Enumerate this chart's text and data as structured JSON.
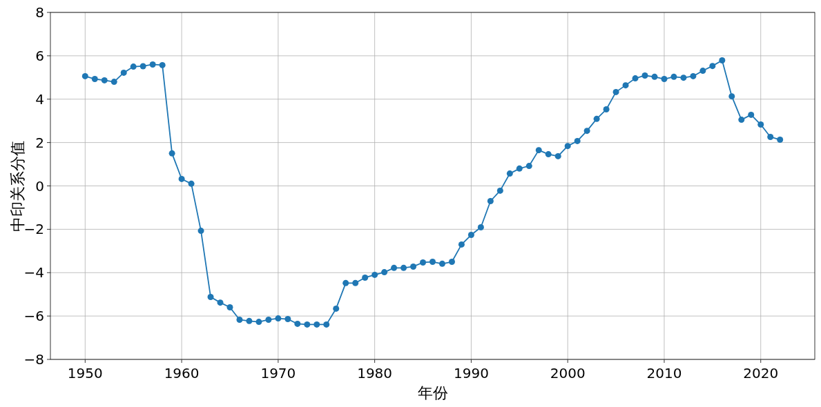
{
  "chart_data": {
    "type": "line",
    "xlabel": "年份",
    "ylabel": "中印关系分值",
    "x": [
      1950,
      1951,
      1952,
      1953,
      1954,
      1955,
      1956,
      1957,
      1958,
      1959,
      1960,
      1961,
      1962,
      1963,
      1964,
      1965,
      1966,
      1967,
      1968,
      1969,
      1970,
      1971,
      1972,
      1973,
      1974,
      1975,
      1976,
      1977,
      1978,
      1979,
      1980,
      1981,
      1982,
      1983,
      1984,
      1985,
      1986,
      1987,
      1988,
      1989,
      1990,
      1991,
      1992,
      1993,
      1994,
      1995,
      1996,
      1997,
      1998,
      1999,
      2000,
      2001,
      2002,
      2003,
      2004,
      2005,
      2006,
      2007,
      2008,
      2009,
      2010,
      2011,
      2012,
      2013,
      2014,
      2015,
      2016,
      2017,
      2018,
      2019,
      2020,
      2021,
      2022
    ],
    "series": [
      {
        "color": "#1f77b4",
        "values": [
          5.06,
          4.93,
          4.87,
          4.8,
          5.22,
          5.5,
          5.52,
          5.6,
          5.57,
          1.5,
          0.32,
          0.1,
          -2.07,
          -5.12,
          -5.38,
          -5.6,
          -6.17,
          -6.23,
          -6.27,
          -6.17,
          -6.11,
          -6.14,
          -6.36,
          -6.39,
          -6.39,
          -6.39,
          -5.66,
          -4.48,
          -4.48,
          -4.23,
          -4.1,
          -3.98,
          -3.78,
          -3.78,
          -3.72,
          -3.53,
          -3.5,
          -3.59,
          -3.5,
          -2.7,
          -2.26,
          -1.91,
          -0.7,
          -0.22,
          0.57,
          0.8,
          0.92,
          1.65,
          1.46,
          1.37,
          1.84,
          2.07,
          2.54,
          3.09,
          3.53,
          4.33,
          4.64,
          4.96,
          5.09,
          5.03,
          4.93,
          5.03,
          4.99,
          5.06,
          5.31,
          5.53,
          5.79,
          4.13,
          3.05,
          3.28,
          2.83,
          2.26,
          2.13
        ]
      }
    ],
    "xlim": [
      1946.4,
      2025.6
    ],
    "ylim": [
      -8,
      8
    ],
    "xticks": [
      1950,
      1960,
      1970,
      1980,
      1990,
      2000,
      2010,
      2020
    ],
    "yticks": [
      {
        "value": -8,
        "label": "−8"
      },
      {
        "value": -6,
        "label": "−6"
      },
      {
        "value": -4,
        "label": "−4"
      },
      {
        "value": -2,
        "label": "−2"
      },
      0,
      2,
      4,
      6,
      8
    ],
    "grid": true,
    "marker": "circle",
    "line_style": "solid"
  }
}
